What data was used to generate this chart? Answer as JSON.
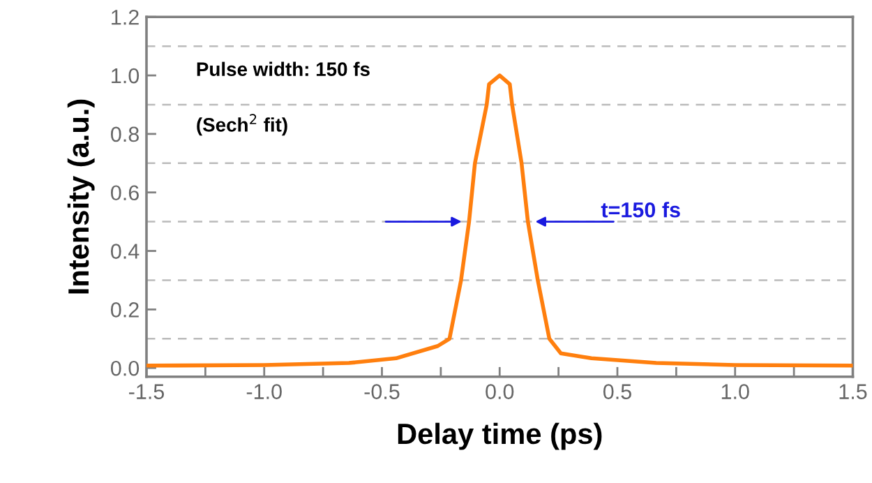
{
  "chart_data": {
    "type": "line",
    "xlabel": "Delay time (ps)",
    "ylabel": "Intensity (a.u.)",
    "x": [
      -1.5,
      -1.0,
      -0.64,
      -0.44,
      -0.263,
      -0.213,
      -0.164,
      -0.13,
      -0.105,
      -0.055,
      -0.045,
      0,
      0.043,
      0.053,
      0.093,
      0.12,
      0.162,
      0.211,
      0.26,
      0.39,
      0.665,
      1.0,
      1.5
    ],
    "series": [
      {
        "color": "#ff7f0e",
        "values": [
          0.008,
          0.01,
          0.017,
          0.033,
          0.075,
          0.1,
          0.3,
          0.5,
          0.7,
          0.9,
          0.97,
          1.0,
          0.97,
          0.9,
          0.7,
          0.5,
          0.3,
          0.1,
          0.05,
          0.033,
          0.017,
          0.01,
          0.008
        ]
      }
    ],
    "xlim": [
      -1.5,
      1.5
    ],
    "ylim": [
      -0.03,
      1.2
    ],
    "xticks": [
      -1.5,
      {
        "value": -1.25,
        "label": null
      },
      {
        "value": -1,
        "label": "-1.0"
      },
      {
        "value": -0.75,
        "label": null
      },
      -0.5,
      {
        "value": -0.25,
        "label": null
      },
      {
        "value": 0,
        "label": "0.0"
      },
      {
        "value": 0.25,
        "label": null
      },
      0.5,
      {
        "value": 0.75,
        "label": null
      },
      {
        "value": 1,
        "label": "1.0"
      },
      {
        "value": 1.25,
        "label": null
      },
      1.5
    ],
    "yticks": [
      {
        "value": 0,
        "label": "0.0"
      },
      0.2,
      0.4,
      0.6,
      0.8,
      {
        "value": 1,
        "label": "1.0"
      },
      1.2
    ],
    "ref_lines": [
      {
        "axis": "y",
        "value": 0.1,
        "color": "#bbbbbb",
        "line_style": "dashed"
      },
      {
        "axis": "y",
        "value": 0.3,
        "color": "#bbbbbb",
        "line_style": "dashed"
      },
      {
        "axis": "y",
        "value": 0.5,
        "color": "#bbbbbb",
        "line_style": "dashed"
      },
      {
        "axis": "y",
        "value": 0.7,
        "color": "#bbbbbb",
        "line_style": "dashed"
      },
      {
        "axis": "y",
        "value": 0.9,
        "color": "#bbbbbb",
        "line_style": "dashed"
      },
      {
        "axis": "y",
        "value": 1.1,
        "color": "#bbbbbb",
        "line_style": "dashed"
      }
    ],
    "annotations": [
      "Pulse width: 150 fs",
      "(Sech$^{2}$ fit)",
      {
        "text": "t=150 fs",
        "x": 0.43,
        "y": 0.5
      }
    ],
    "grid": false,
    "legend": false,
    "marker": "none",
    "line_style": "solid"
  }
}
